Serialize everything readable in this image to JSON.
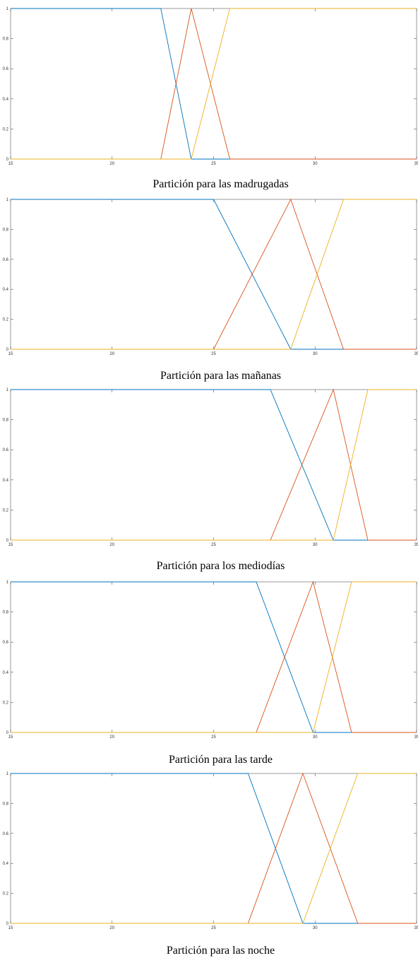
{
  "chart_data": [
    {
      "type": "line",
      "caption": "Partición para las madrugadas",
      "xlim": [
        15,
        35
      ],
      "ylim": [
        0,
        1
      ],
      "xticks": [
        15,
        20,
        25,
        30,
        35
      ],
      "xtick_labels": [
        "15",
        "20",
        "25",
        "30",
        "35"
      ],
      "yticks": [
        0,
        0.2,
        0.4,
        0.6,
        0.8,
        1
      ],
      "ytick_labels": [
        "0",
        "0.2",
        "0.4",
        "0.6",
        "0.8",
        "1"
      ],
      "series": [
        {
          "color": "#0072bd",
          "x": [
            15,
            22.4,
            23.9,
            35
          ],
          "y": [
            1,
            1,
            0,
            0
          ]
        },
        {
          "color": "#d95319",
          "x": [
            15,
            22.4,
            23.9,
            25.8,
            35
          ],
          "y": [
            0,
            0,
            1,
            0,
            0
          ]
        },
        {
          "color": "#edb120",
          "x": [
            15,
            23.9,
            25.8,
            35
          ],
          "y": [
            0,
            0,
            1,
            1
          ]
        }
      ]
    },
    {
      "type": "line",
      "caption": "Partición para las mañanas",
      "xlim": [
        15,
        35
      ],
      "ylim": [
        0,
        1
      ],
      "xticks": [
        15,
        20,
        25,
        30,
        35
      ],
      "xtick_labels": [
        "15",
        "20",
        "25",
        "30",
        "35"
      ],
      "yticks": [
        0,
        0.2,
        0.4,
        0.6,
        0.8,
        1
      ],
      "ytick_labels": [
        "0",
        "0.2",
        "0.4",
        "0.6",
        "0.8",
        "1"
      ],
      "series": [
        {
          "color": "#0072bd",
          "x": [
            15,
            25.0,
            28.8,
            35
          ],
          "y": [
            1,
            1,
            0,
            0
          ]
        },
        {
          "color": "#d95319",
          "x": [
            15,
            25.0,
            28.8,
            31.4,
            35
          ],
          "y": [
            0,
            0,
            1,
            0,
            0
          ]
        },
        {
          "color": "#edb120",
          "x": [
            15,
            28.8,
            31.4,
            35
          ],
          "y": [
            0,
            0,
            1,
            1
          ]
        }
      ]
    },
    {
      "type": "line",
      "caption": "Partición para los mediodías",
      "xlim": [
        15,
        35
      ],
      "ylim": [
        0,
        1
      ],
      "xticks": [
        15,
        20,
        25,
        30,
        35
      ],
      "xtick_labels": [
        "15",
        "20",
        "25",
        "30",
        "35"
      ],
      "yticks": [
        0,
        0.2,
        0.4,
        0.6,
        0.8,
        1
      ],
      "ytick_labels": [
        "0",
        "0.2",
        "0.4",
        "0.6",
        "0.8",
        "1"
      ],
      "series": [
        {
          "color": "#0072bd",
          "x": [
            15,
            27.8,
            30.9,
            35
          ],
          "y": [
            1,
            1,
            0,
            0
          ]
        },
        {
          "color": "#d95319",
          "x": [
            15,
            27.8,
            30.9,
            32.6,
            35
          ],
          "y": [
            0,
            0,
            1,
            0,
            0
          ]
        },
        {
          "color": "#edb120",
          "x": [
            15,
            30.9,
            32.6,
            35
          ],
          "y": [
            0,
            0,
            1,
            1
          ]
        }
      ]
    },
    {
      "type": "line",
      "caption": "Partición para las tarde",
      "xlim": [
        15,
        35
      ],
      "ylim": [
        0,
        1
      ],
      "xticks": [
        15,
        20,
        25,
        30,
        35
      ],
      "xtick_labels": [
        "15",
        "20",
        "25",
        "30",
        "35"
      ],
      "yticks": [
        0,
        0.2,
        0.4,
        0.6,
        0.8,
        1
      ],
      "ytick_labels": [
        "0",
        "0.2",
        "0.4",
        "0.6",
        "0.8",
        "1"
      ],
      "series": [
        {
          "color": "#0072bd",
          "x": [
            15,
            27.1,
            29.9,
            35
          ],
          "y": [
            1,
            1,
            0,
            0
          ]
        },
        {
          "color": "#d95319",
          "x": [
            15,
            27.1,
            29.9,
            31.8,
            35
          ],
          "y": [
            0,
            0,
            1,
            0,
            0
          ]
        },
        {
          "color": "#edb120",
          "x": [
            15,
            29.9,
            31.8,
            35
          ],
          "y": [
            0,
            0,
            1,
            1
          ]
        }
      ]
    },
    {
      "type": "line",
      "caption": "Partición para las noche",
      "xlim": [
        15,
        35
      ],
      "ylim": [
        0,
        1
      ],
      "xticks": [
        15,
        20,
        25,
        30,
        35
      ],
      "xtick_labels": [
        "15",
        "20",
        "25",
        "30",
        "35"
      ],
      "yticks": [
        0,
        0.2,
        0.4,
        0.6,
        0.8,
        1
      ],
      "ytick_labels": [
        "0",
        "0.2",
        "0.4",
        "0.6",
        "0.8",
        "1"
      ],
      "series": [
        {
          "color": "#0072bd",
          "x": [
            15,
            26.7,
            29.4,
            35
          ],
          "y": [
            1,
            1,
            0,
            0
          ]
        },
        {
          "color": "#d95319",
          "x": [
            15,
            26.7,
            29.4,
            32.1,
            35
          ],
          "y": [
            0,
            0,
            1,
            0,
            0
          ]
        },
        {
          "color": "#edb120",
          "x": [
            15,
            29.4,
            32.1,
            35
          ],
          "y": [
            0,
            0,
            1,
            1
          ]
        }
      ]
    }
  ]
}
